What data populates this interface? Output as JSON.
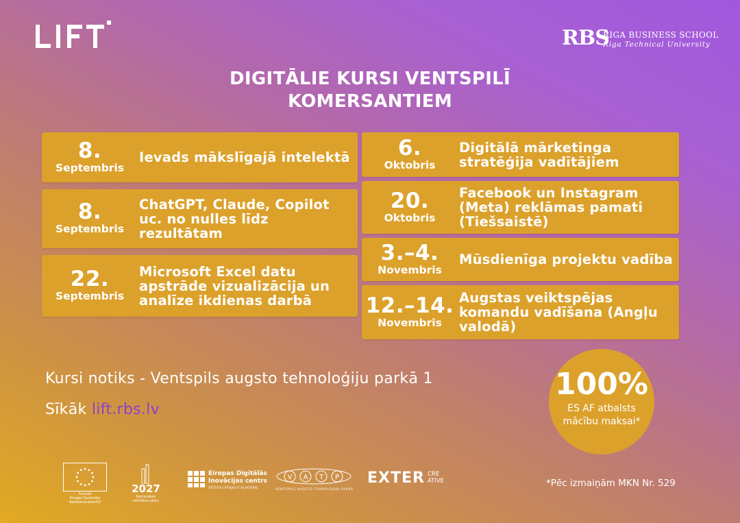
{
  "header": {
    "logo_text": "LIFT",
    "partner_mark": "RBS",
    "partner_name": "RIGA BUSINESS SCHOOL",
    "partner_sub": "Riga Technical University"
  },
  "title_line1": "DIGITĀLIE KURSI VENTSPILĪ",
  "title_line2": "KOMERSANTIEM",
  "courses_left": [
    {
      "day": "8.",
      "month": "Septembris",
      "title": "Ievads mākslīgajā intelektā"
    },
    {
      "day": "8.",
      "month": "Septembris",
      "title": "ChatGPT, Claude, Copilot uc. no nulles līdz rezultātam"
    },
    {
      "day": "22.",
      "month": "Septembris",
      "title": "Microsoft Excel datu apstrāde vizualizācija un analīze ikdienas darbā"
    }
  ],
  "courses_right": [
    {
      "day": "6.",
      "month": "Oktobris",
      "title": "Digitālā mārketinga stratēģija vadītājiem"
    },
    {
      "day": "20.",
      "month": "Oktobris",
      "title": "Facebook un Instagram (Meta) reklāmas pamati (Tiešsaistē)"
    },
    {
      "day": "3.–4.",
      "month": "Novembris",
      "title": "Mūsdienīga projektu vadība"
    },
    {
      "day": "12.–14.",
      "month": "Novembris",
      "title": "Augstas veiktspējas komandu vadīšana (Angļu valodā)"
    }
  ],
  "venue": "Kursi notiks - Ventspils augsto tehnoloģiju parkā 1",
  "more": {
    "label": "Sīkāk",
    "link": "lift.rbs.lv"
  },
  "badge": {
    "percent": "100%",
    "line1": "ES AF atbalsts",
    "line2": "mācību maksai*"
  },
  "footer": {
    "eu_caption1": "Finansē",
    "eu_caption2": "Eiropas Savienība",
    "eu_caption3": "NextGenerationEU",
    "plan_year": "2027",
    "plan_caption1": "Nacionālais",
    "plan_caption2": "attīstības plāns",
    "edih_line1": "Eiropas Digitālās",
    "edih_line2": "Inovācijas centrs",
    "edih_sub": "ATTĪSTĪA LATVIJAS IT KLASTERIS",
    "vatp_letters": [
      "V",
      "A",
      "T",
      "P"
    ],
    "vatp_caption": "VENTSPILS AUGSTO TEHNOLOĢIJU PARKS",
    "enter_word": "EXTER",
    "enter_cre": "CRE",
    "enter_ative": "ATIVE",
    "note": "*Pēc izmaiņām MKN Nr. 529"
  },
  "colors": {
    "card": "#dca12b",
    "link": "#8a3fcf",
    "gradient_start": "#e2aa22",
    "gradient_end": "#a158de"
  }
}
